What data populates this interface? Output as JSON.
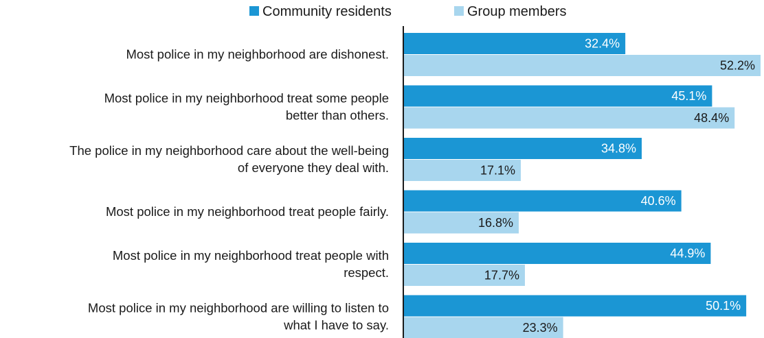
{
  "chart_data": {
    "type": "bar",
    "orientation": "horizontal",
    "categories": [
      [
        "Most police in my neighborhood are dishonest."
      ],
      [
        "Most police in my neighborhood treat some people",
        "better than others."
      ],
      [
        "The police in my neighborhood care about the well-being",
        "of everyone they deal with."
      ],
      [
        "Most police in my neighborhood treat people fairly."
      ],
      [
        "Most police in my neighborhood treat people with",
        "respect."
      ],
      [
        "Most police in my neighborhood are willing to listen to",
        "what I have to say."
      ]
    ],
    "series": [
      {
        "name": "Community residents",
        "color": "#1b96d4",
        "label_color": "#ffffff",
        "values": [
          32.4,
          45.1,
          34.8,
          40.6,
          44.9,
          50.1
        ],
        "labels": [
          "32.4%",
          "45.1%",
          "34.8%",
          "40.6%",
          "44.9%",
          "50.1%"
        ]
      },
      {
        "name": "Group members",
        "color": "#a8d6ee",
        "label_color": "#1a1a1a",
        "values": [
          52.2,
          48.4,
          17.1,
          16.8,
          17.7,
          23.3
        ],
        "labels": [
          "52.2%",
          "48.4%",
          "17.1%",
          "16.8%",
          "17.7%",
          "23.3%"
        ]
      }
    ],
    "title": "",
    "xlabel": "",
    "ylabel": "",
    "xlim": [
      0,
      52.2
    ],
    "grid": false,
    "legend": "top-center",
    "value_labels": "inside-end"
  }
}
